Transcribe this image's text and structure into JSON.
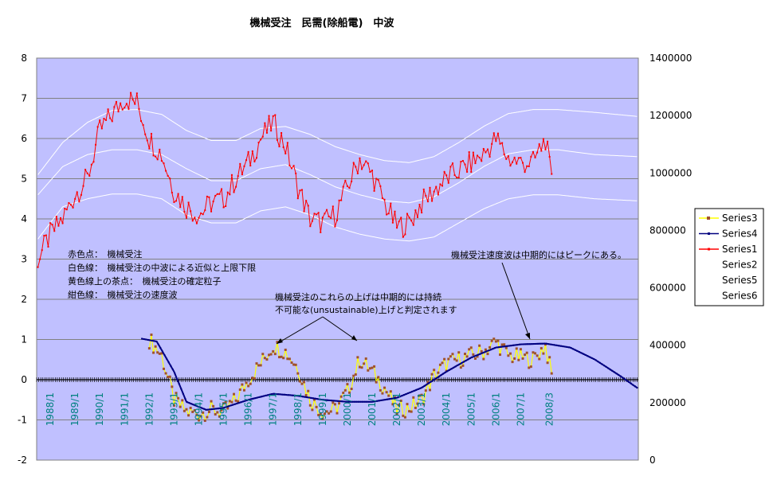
{
  "chart_data": {
    "type": "line",
    "title": "機械受注　民需(除船電)　中波",
    "left_axis": {
      "ylim": [
        -2,
        8
      ],
      "ticks": [
        "-2",
        "-1",
        "0",
        "1",
        "2",
        "3",
        "4",
        "5",
        "6",
        "7",
        "8"
      ]
    },
    "right_axis": {
      "ylim": [
        0,
        1400000
      ],
      "ticks": [
        "0",
        "200000",
        "400000",
        "600000",
        "800000",
        "1000000",
        "1200000",
        "1400000"
      ]
    },
    "x_labels": [
      "1988/1",
      "1989/1",
      "1990/1",
      "1991/1",
      "1992/1",
      "1993/1",
      "1994/1",
      "1995/1",
      "1996/1",
      "1997/1",
      "1998/1",
      "1999/1",
      "2000/1",
      "2001/1",
      "2002/1",
      "2003/1",
      "2004/1",
      "2005/1",
      "2006/1",
      "2007/1",
      "2008/3"
    ],
    "grid": true,
    "legend_position": "right",
    "series": [
      {
        "name": "Series3",
        "color": "#FFFF00",
        "marker_color": "#A0522D",
        "keypoints": [
          [
            1992.0,
            1.0
          ],
          [
            1992.5,
            0.6
          ],
          [
            1993.0,
            -0.5
          ],
          [
            1993.5,
            -0.8
          ],
          [
            1994.0,
            -0.85
          ],
          [
            1994.5,
            -0.75
          ],
          [
            1995.0,
            -0.8
          ],
          [
            1995.5,
            -0.5
          ],
          [
            1996.0,
            0.0
          ],
          [
            1996.5,
            0.4
          ],
          [
            1997.0,
            0.85
          ],
          [
            1997.5,
            0.7
          ],
          [
            1998.0,
            0.3
          ],
          [
            1998.5,
            -0.5
          ],
          [
            1999.0,
            -0.8
          ],
          [
            1999.5,
            -0.75
          ],
          [
            2000.0,
            -0.3
          ],
          [
            2000.5,
            0.5
          ],
          [
            2001.0,
            0.2
          ],
          [
            2001.5,
            -0.2
          ],
          [
            2002.0,
            -0.75
          ],
          [
            2002.5,
            -0.7
          ],
          [
            2003.0,
            -0.5
          ],
          [
            2003.5,
            0.1
          ],
          [
            2004.0,
            0.4
          ],
          [
            2004.5,
            0.5
          ],
          [
            2005.0,
            0.6
          ],
          [
            2005.5,
            0.7
          ],
          [
            2006.0,
            0.95
          ],
          [
            2006.5,
            0.6
          ],
          [
            2007.0,
            0.55
          ],
          [
            2007.5,
            0.5
          ],
          [
            2008.0,
            0.85
          ],
          [
            2008.25,
            0.1
          ]
        ]
      },
      {
        "name": "Series4",
        "color": "#000080",
        "keypoints": [
          [
            1991.7,
            1.02
          ],
          [
            1992.3,
            0.95
          ],
          [
            1993.0,
            0.2
          ],
          [
            1993.5,
            -0.55
          ],
          [
            1994.3,
            -0.75
          ],
          [
            1995.0,
            -0.7
          ],
          [
            1996.0,
            -0.5
          ],
          [
            1997.0,
            -0.35
          ],
          [
            1998.0,
            -0.4
          ],
          [
            1999.0,
            -0.5
          ],
          [
            2000.0,
            -0.55
          ],
          [
            2001.0,
            -0.55
          ],
          [
            2002.0,
            -0.45
          ],
          [
            2003.0,
            -0.2
          ],
          [
            2004.0,
            0.2
          ],
          [
            2005.0,
            0.55
          ],
          [
            2006.0,
            0.8
          ],
          [
            2007.0,
            0.88
          ],
          [
            2008.0,
            0.9
          ],
          [
            2009.0,
            0.8
          ],
          [
            2010.0,
            0.5
          ],
          [
            2011.0,
            0.1
          ],
          [
            2011.7,
            -0.2
          ]
        ]
      },
      {
        "name": "Series1",
        "color": "#FF0000",
        "keypoints": [
          [
            1987.5,
            3.0
          ],
          [
            1988.0,
            3.6
          ],
          [
            1988.5,
            4.0
          ],
          [
            1989.0,
            4.6
          ],
          [
            1989.5,
            5.0
          ],
          [
            1990.0,
            6.2
          ],
          [
            1990.5,
            6.6
          ],
          [
            1991.0,
            7.0
          ],
          [
            1991.5,
            6.9
          ],
          [
            1992.0,
            6.0
          ],
          [
            1992.5,
            5.6
          ],
          [
            1993.0,
            4.7
          ],
          [
            1993.5,
            4.3
          ],
          [
            1994.0,
            4.1
          ],
          [
            1994.5,
            4.4
          ],
          [
            1995.0,
            4.5
          ],
          [
            1995.5,
            5.0
          ],
          [
            1996.0,
            5.4
          ],
          [
            1996.5,
            6.0
          ],
          [
            1997.0,
            6.4
          ],
          [
            1997.5,
            5.8
          ],
          [
            1998.0,
            4.8
          ],
          [
            1998.5,
            4.0
          ],
          [
            1999.0,
            3.9
          ],
          [
            1999.5,
            4.1
          ],
          [
            2000.0,
            4.8
          ],
          [
            2000.5,
            5.5
          ],
          [
            2001.0,
            5.1
          ],
          [
            2001.5,
            4.4
          ],
          [
            2002.0,
            3.8
          ],
          [
            2002.5,
            3.9
          ],
          [
            2003.0,
            4.4
          ],
          [
            2003.5,
            4.7
          ],
          [
            2004.0,
            5.0
          ],
          [
            2004.5,
            5.2
          ],
          [
            2005.0,
            5.4
          ],
          [
            2005.5,
            5.6
          ],
          [
            2006.0,
            6.0
          ],
          [
            2006.5,
            5.5
          ],
          [
            2007.0,
            5.4
          ],
          [
            2007.5,
            5.4
          ],
          [
            2008.0,
            6.0
          ],
          [
            2008.25,
            4.9
          ]
        ]
      },
      {
        "name": "Series2",
        "color": "#FFFFFF",
        "keypoints": [
          [
            1987.5,
            4.6
          ],
          [
            1988.5,
            5.3
          ],
          [
            1989.5,
            5.6
          ],
          [
            1990.5,
            5.72
          ],
          [
            1991.5,
            5.72
          ],
          [
            1992.5,
            5.6
          ],
          [
            1993.5,
            5.25
          ],
          [
            1994.5,
            4.95
          ],
          [
            1995.5,
            4.95
          ],
          [
            1996.5,
            5.25
          ],
          [
            1997.5,
            5.35
          ],
          [
            1998.5,
            5.1
          ],
          [
            1999.5,
            4.8
          ],
          [
            2000.5,
            4.6
          ],
          [
            2001.5,
            4.45
          ],
          [
            2002.5,
            4.4
          ],
          [
            2003.5,
            4.55
          ],
          [
            2004.5,
            4.9
          ],
          [
            2005.5,
            5.3
          ],
          [
            2006.5,
            5.62
          ],
          [
            2007.5,
            5.72
          ],
          [
            2008.5,
            5.72
          ],
          [
            2010.0,
            5.6
          ],
          [
            2011.7,
            5.55
          ]
        ]
      },
      {
        "name": "Series5",
        "color": "#FFFFFF",
        "keypoints": [
          [
            1987.5,
            5.1
          ],
          [
            1988.5,
            5.9
          ],
          [
            1989.5,
            6.4
          ],
          [
            1990.5,
            6.7
          ],
          [
            1991.5,
            6.72
          ],
          [
            1992.5,
            6.6
          ],
          [
            1993.5,
            6.2
          ],
          [
            1994.5,
            5.95
          ],
          [
            1995.5,
            5.95
          ],
          [
            1996.5,
            6.25
          ],
          [
            1997.5,
            6.3
          ],
          [
            1998.5,
            6.1
          ],
          [
            1999.5,
            5.8
          ],
          [
            2000.5,
            5.6
          ],
          [
            2001.5,
            5.45
          ],
          [
            2002.5,
            5.4
          ],
          [
            2003.5,
            5.55
          ],
          [
            2004.5,
            5.9
          ],
          [
            2005.5,
            6.3
          ],
          [
            2006.5,
            6.62
          ],
          [
            2007.5,
            6.72
          ],
          [
            2008.5,
            6.72
          ],
          [
            2010.0,
            6.65
          ],
          [
            2011.7,
            6.55
          ]
        ]
      },
      {
        "name": "Series6",
        "color": "#FFFFFF",
        "keypoints": [
          [
            1987.5,
            3.5
          ],
          [
            1988.5,
            4.3
          ],
          [
            1989.5,
            4.5
          ],
          [
            1990.5,
            4.62
          ],
          [
            1991.5,
            4.62
          ],
          [
            1992.5,
            4.5
          ],
          [
            1993.5,
            4.1
          ],
          [
            1994.5,
            3.9
          ],
          [
            1995.5,
            3.9
          ],
          [
            1996.5,
            4.2
          ],
          [
            1997.5,
            4.3
          ],
          [
            1998.5,
            4.1
          ],
          [
            1999.5,
            3.8
          ],
          [
            2000.5,
            3.62
          ],
          [
            2001.5,
            3.5
          ],
          [
            2002.5,
            3.45
          ],
          [
            2003.5,
            3.55
          ],
          [
            2004.5,
            3.9
          ],
          [
            2005.5,
            4.25
          ],
          [
            2006.5,
            4.5
          ],
          [
            2007.5,
            4.6
          ],
          [
            2008.5,
            4.6
          ],
          [
            2010.0,
            4.5
          ],
          [
            2011.7,
            4.45
          ]
        ]
      }
    ],
    "annotations": {
      "box_lines": [
        "赤色点：　機械受注",
        "白色線：　機械受注の中波による近似と上限下限",
        "黄色線上の茶点：　機械受注の確定粒子",
        "紺色線：　機械受注の速度波"
      ],
      "note1_lines": [
        "機械受注のこれらの上げは中期的には持続",
        "不可能な(unsustainable)上げと判定されます"
      ],
      "note2": "機械受注速度波は中期的にはピークにある。"
    }
  }
}
